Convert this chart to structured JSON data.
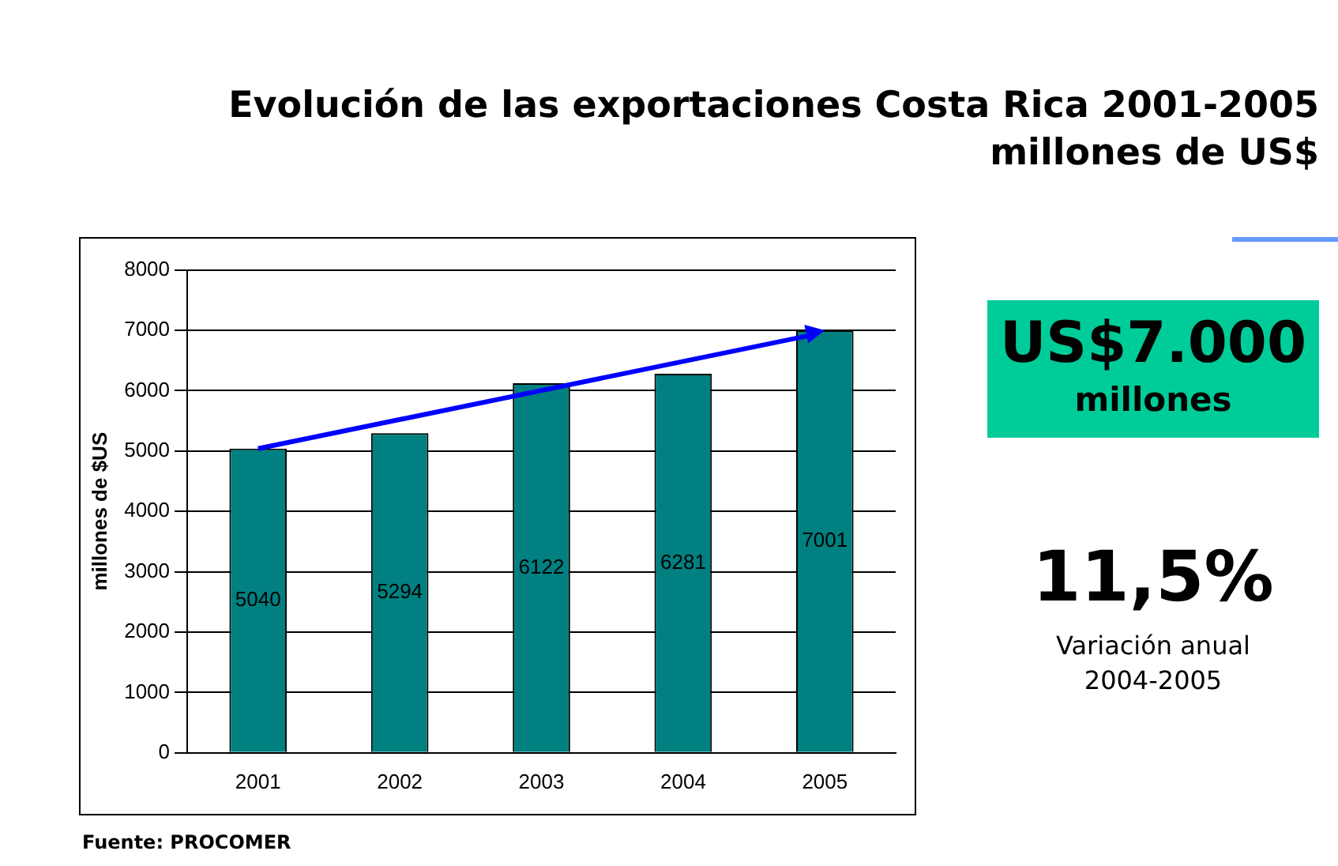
{
  "chart_data": {
    "type": "bar",
    "title": "Evolución de las exportaciones Costa Rica 2001-2005",
    "subtitle": "millones de US$",
    "ylabel": "millones de $US",
    "categories": [
      "2001",
      "2002",
      "2003",
      "2004",
      "2005"
    ],
    "values": [
      5040,
      5294,
      6122,
      6281,
      7001
    ],
    "color": "#008080",
    "ylim": [
      0,
      8000
    ],
    "yticks": [
      0,
      1000,
      2000,
      3000,
      4000,
      5000,
      6000,
      7000,
      8000
    ],
    "grid": "y",
    "data_labels": true,
    "legend": false,
    "annotations": [
      "US$7.000",
      "millones",
      "11,5%",
      "Variación anual",
      "2004-2005",
      "Fuente: PROCOMER"
    ]
  }
}
